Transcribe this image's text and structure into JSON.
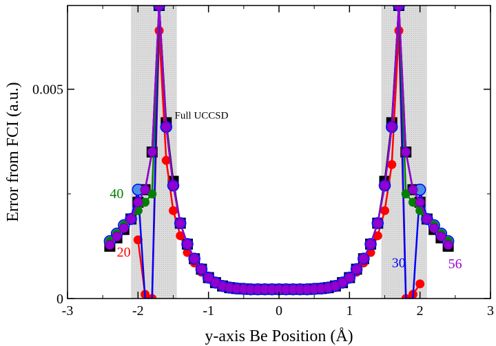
{
  "chart_data": {
    "type": "line",
    "title": "",
    "xlabel": "y-axis Be Position (Å)",
    "ylabel": "Error from FCI (a.u.)",
    "xlim": [
      -3,
      3
    ],
    "ylim": [
      0,
      0.007
    ],
    "xticks": [
      -3,
      -2,
      -1,
      0,
      1,
      2,
      3
    ],
    "xtick_labels": [
      "-3",
      "-2",
      "-1",
      "0",
      "1",
      "2",
      "3"
    ],
    "yticks": [
      0,
      0.005
    ],
    "ytick_labels": [
      "0",
      "0.005"
    ],
    "grid": false,
    "shaded_regions": [
      [
        -2.1,
        -1.45
      ],
      [
        1.45,
        2.1
      ]
    ],
    "x": [
      -2.4,
      -2.3,
      -2.2,
      -2.1,
      -2.0,
      -1.9,
      -1.8,
      -1.7,
      -1.6,
      -1.5,
      -1.4,
      -1.3,
      -1.2,
      -1.1,
      -1.0,
      -0.9,
      -0.8,
      -0.7,
      -0.6,
      -0.5,
      -0.4,
      -0.3,
      -0.2,
      -0.1,
      0.0,
      0.1,
      0.2,
      0.3,
      0.4,
      0.5,
      0.6,
      0.7,
      0.8,
      0.9,
      1.0,
      1.1,
      1.2,
      1.3,
      1.4,
      1.5,
      1.6,
      1.7,
      1.8,
      1.9,
      2.0,
      2.1,
      2.2,
      2.3,
      2.4
    ],
    "series": [
      {
        "name": "Full UCCSD",
        "color": "#000000",
        "marker": "square",
        "values": [
          0.00125,
          0.00145,
          0.00165,
          0.0019,
          0.0023,
          0.0026,
          0.0035,
          0.007,
          0.0042,
          0.0028,
          0.0018,
          0.0013,
          0.00095,
          0.0007,
          0.0005,
          0.00038,
          0.0003,
          0.00026,
          0.00024,
          0.00023,
          0.00022,
          0.00022,
          0.00022,
          0.00022,
          0.00022,
          0.00022,
          0.00022,
          0.00022,
          0.00022,
          0.00023,
          0.00024,
          0.00026,
          0.0003,
          0.00038,
          0.0005,
          0.0007,
          0.00095,
          0.0013,
          0.0018,
          0.0028,
          0.0042,
          0.007,
          0.0035,
          0.0026,
          0.0023,
          0.0019,
          0.00165,
          0.00145,
          0.00125
        ]
      },
      {
        "name": "20",
        "color": "#ff0000",
        "marker": "circle",
        "values": [
          null,
          null,
          null,
          null,
          0.0014,
          0.0001,
          0.0,
          0.0064,
          0.0033,
          0.0021,
          0.0015,
          0.0011,
          0.00085,
          0.00063,
          0.00047,
          0.00036,
          0.0003,
          0.00026,
          0.00024,
          0.00023,
          0.00022,
          0.00022,
          0.00022,
          0.00022,
          0.00022,
          0.00022,
          0.00022,
          0.00022,
          0.00022,
          0.00023,
          0.00024,
          0.00026,
          0.0003,
          0.00036,
          0.00047,
          0.00063,
          0.00085,
          0.0011,
          0.0015,
          0.0021,
          0.0032,
          0.0064,
          0.0,
          0.0001,
          0.00035,
          null,
          null,
          null,
          null
        ]
      },
      {
        "name": "30",
        "color": "#0000ff",
        "marker": "circle",
        "values": [
          0.00137,
          0.00155,
          0.00175,
          0.0019,
          0.0026,
          0.0,
          0.0,
          0.007,
          0.0041,
          0.0027,
          0.0018,
          0.0013,
          0.00095,
          0.0007,
          0.0005,
          0.00038,
          0.0003,
          0.00026,
          0.00024,
          0.00023,
          0.00022,
          0.00022,
          0.00022,
          0.00022,
          0.00022,
          0.00022,
          0.00022,
          0.00022,
          0.00022,
          0.00023,
          0.00024,
          0.00026,
          0.0003,
          0.00038,
          0.0005,
          0.0007,
          0.00095,
          0.0013,
          0.0018,
          0.0027,
          0.0041,
          0.007,
          0.0,
          0.0,
          0.0026,
          0.0019,
          0.00175,
          0.00155,
          0.00137
        ]
      },
      {
        "name": "40",
        "color": "#008000",
        "marker": "circle",
        "values": [
          0.00137,
          0.00155,
          0.00175,
          0.0019,
          0.0021,
          0.0023,
          0.0025,
          0.007,
          0.0041,
          0.0027,
          0.0018,
          0.0013,
          0.00095,
          0.0007,
          0.0005,
          0.00038,
          0.0003,
          0.00026,
          0.00024,
          0.00023,
          0.00022,
          0.00022,
          0.00022,
          0.00022,
          0.00022,
          0.00022,
          0.00022,
          0.00022,
          0.00022,
          0.00023,
          0.00024,
          0.00026,
          0.0003,
          0.00038,
          0.0005,
          0.0007,
          0.00095,
          0.0013,
          0.0018,
          0.0027,
          0.0041,
          0.007,
          0.0025,
          0.0023,
          0.0021,
          0.0019,
          0.00175,
          0.00155,
          0.00137
        ]
      },
      {
        "name": "56",
        "color": "#9400d3",
        "marker": "circle",
        "values": [
          0.00128,
          0.00148,
          0.00168,
          0.0019,
          0.0023,
          0.0026,
          0.0035,
          0.007,
          0.0041,
          0.0027,
          0.0018,
          0.0013,
          0.00095,
          0.0007,
          0.0005,
          0.00038,
          0.0003,
          0.00026,
          0.00024,
          0.00023,
          0.00022,
          0.00022,
          0.00022,
          0.00022,
          0.00022,
          0.00022,
          0.00022,
          0.00022,
          0.00022,
          0.00023,
          0.00024,
          0.00026,
          0.0003,
          0.00038,
          0.0005,
          0.0007,
          0.00095,
          0.0013,
          0.0018,
          0.0027,
          0.0041,
          0.007,
          0.0035,
          0.0026,
          0.0023,
          0.0019,
          0.00168,
          0.00148,
          0.00128
        ]
      }
    ],
    "annotations": [
      {
        "text": "Full UCCSD",
        "x": -1.48,
        "y": 0.0043,
        "color": "#000000",
        "size": "small"
      },
      {
        "text": "40",
        "x": -2.4,
        "y": 0.0024,
        "color": "#008000",
        "size": "large"
      },
      {
        "text": "20",
        "x": -2.3,
        "y": 0.001,
        "color": "#ff0000",
        "size": "large"
      },
      {
        "text": "30",
        "x": 1.6,
        "y": 0.00075,
        "color": "#0000ff",
        "size": "large"
      },
      {
        "text": "56",
        "x": 2.4,
        "y": 0.00072,
        "color": "#9400d3",
        "size": "large"
      }
    ]
  }
}
